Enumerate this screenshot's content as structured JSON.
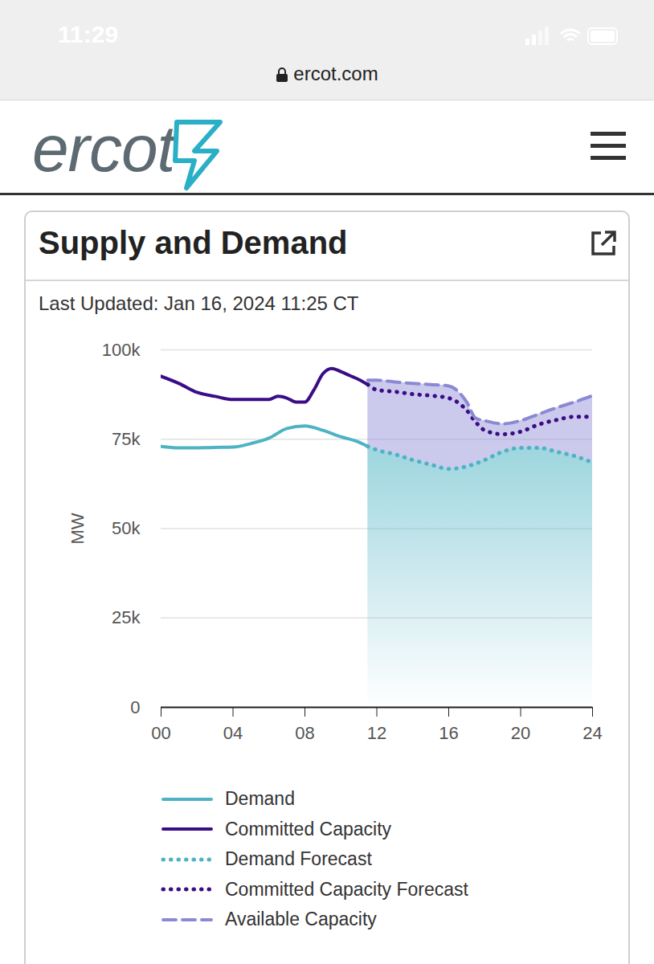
{
  "page": {
    "status_time": "11:29",
    "url": "ercot.com",
    "logo": "ercot"
  },
  "chart_data": {
    "type": "line",
    "title": "Supply and Demand",
    "subtitle": "Last Updated: Jan 16, 2024 11:25 CT",
    "y_label": "MW",
    "xlim": [
      0,
      24
    ],
    "xticks": [
      {
        "value": 0,
        "label": "00"
      },
      {
        "value": 4,
        "label": "04"
      },
      {
        "value": 8,
        "label": "08"
      },
      12,
      16,
      20,
      24
    ],
    "ylim": [
      0,
      100000
    ],
    "yticks": [
      0,
      {
        "value": 25000,
        "label": "25k"
      },
      {
        "value": 50000,
        "label": "50k"
      },
      {
        "value": 75000,
        "label": "75k"
      },
      {
        "value": 100000,
        "label": "100k"
      }
    ],
    "grid": true,
    "series": [
      {
        "name": "Demand",
        "color": "#4db3c4",
        "line_style": "solid",
        "type": "line",
        "x": [
          0,
          1,
          2,
          3,
          4,
          5,
          6,
          7,
          8,
          9,
          10,
          11,
          11.5
        ],
        "values": [
          73000,
          72600,
          72600,
          72700,
          72800,
          73800,
          75300,
          78000,
          78700,
          77500,
          75700,
          74200,
          73000
        ]
      },
      {
        "name": "Committed Capacity",
        "color": "#3a0d86",
        "line_style": "solid",
        "type": "line",
        "x": [
          0,
          1,
          2,
          3,
          4,
          5,
          6,
          6.5,
          7,
          7.5,
          8,
          8.5,
          9,
          9.5,
          10,
          10.5,
          11,
          11.5
        ],
        "values": [
          92600,
          90600,
          88100,
          87000,
          86100,
          86100,
          86100,
          87000,
          86500,
          85400,
          85400,
          88800,
          93300,
          94800,
          93900,
          92800,
          91700,
          90300
        ]
      },
      {
        "name": "Demand Forecast",
        "color": "#4db3c4",
        "line_style": "dotted",
        "type": "area",
        "x": [
          11.5,
          12,
          13,
          14,
          15,
          16,
          17,
          17.5,
          18,
          19,
          20,
          21,
          22,
          23,
          24
        ],
        "values": [
          73000,
          72000,
          70800,
          69200,
          67900,
          66700,
          67400,
          68200,
          69200,
          71500,
          72600,
          72600,
          71500,
          70300,
          68500
        ]
      },
      {
        "name": "Committed Capacity Forecast",
        "color": "#3a0d86",
        "line_style": "dotted",
        "type": "line",
        "x": [
          11.5,
          12,
          13,
          14,
          15,
          16,
          17,
          17.5,
          18,
          19,
          20,
          21,
          22,
          23,
          24
        ],
        "values": [
          90300,
          88800,
          88300,
          87600,
          87200,
          86500,
          83100,
          79800,
          77500,
          76400,
          77100,
          79100,
          80400,
          81300,
          81300
        ]
      },
      {
        "name": "Available Capacity",
        "color": "#8c89d4",
        "line_style": "dashed",
        "type": "area",
        "x": [
          11.5,
          12,
          13,
          14,
          15,
          16,
          17,
          17.5,
          18,
          19,
          20,
          21,
          22,
          23,
          24
        ],
        "values": [
          91500,
          91500,
          91000,
          90600,
          90300,
          89900,
          85400,
          80900,
          80200,
          79300,
          80200,
          82000,
          83800,
          85400,
          87200
        ]
      }
    ]
  }
}
